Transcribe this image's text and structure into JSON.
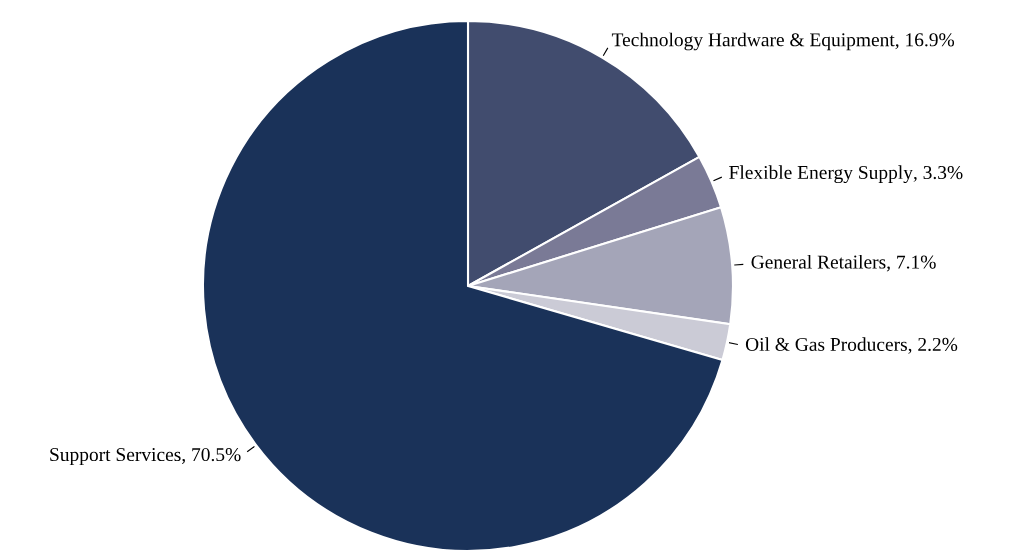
{
  "chart_data": {
    "type": "pie",
    "categories": [
      "Technology Hardware & Equipment",
      "Flexible Energy Supply",
      "General Retailers",
      "Oil & Gas Producers",
      "Support Services"
    ],
    "values": [
      16.9,
      3.3,
      7.1,
      2.2,
      70.5
    ],
    "colors": [
      "#414c6e",
      "#7a7a96",
      "#a4a5b8",
      "#cbcbd6",
      "#1a3259"
    ],
    "value_labels": [
      ", 16.9%",
      ", 3.3%",
      ", 7.1%",
      ", 2.2%",
      ", 70.5%"
    ],
    "legend": false
  }
}
